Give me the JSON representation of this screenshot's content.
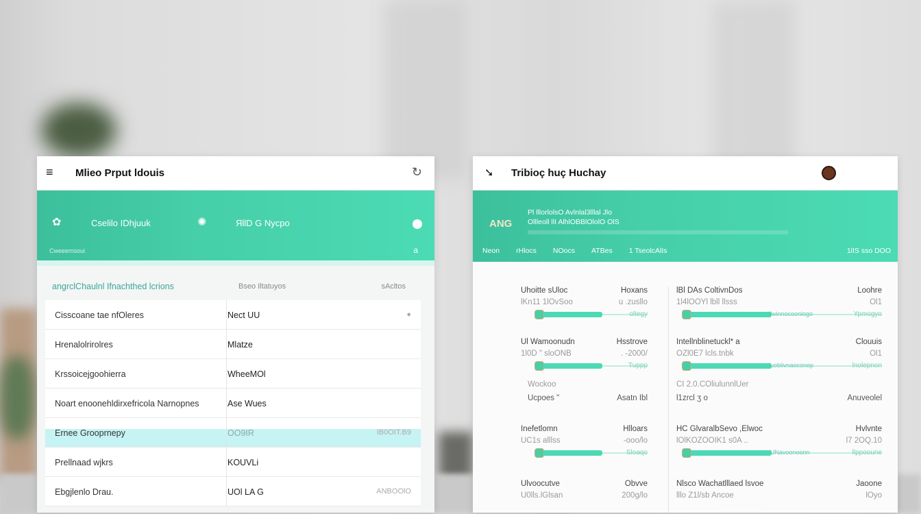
{
  "left_panel": {
    "title": "Mlieo Prput ldouis",
    "band": {
      "item1": "Cselilo IDhjuuk",
      "item2": "ЯllD G Nycpo",
      "sub": "Cweeemsoui",
      "sub_right": "a"
    },
    "section": {
      "heading": "angrclChaulnl Ifnachthed lcrions",
      "middle": "Bseo Iltatuyos",
      "right": "sAcltos"
    },
    "rows": [
      {
        "c1": "Cisscoane tae nfOleres",
        "c2": "Nect UU",
        "c3": "●"
      },
      {
        "c1": "Hrenalolrirolres",
        "c2": "Mlatze",
        "c3": ""
      },
      {
        "c1": "Krssoicejgoohierra",
        "c2": "WheeMOl",
        "c3": ""
      },
      {
        "c1": "Noart enoonehldirxefricola Narnopnes",
        "c2": "Ase Wues",
        "c3": ""
      },
      {
        "c1": "Ernee Grooprnepy",
        "c2": "OO9IR",
        "c3": "IB0OIT.B9"
      },
      {
        "c1": "Prellnaad wjkrs",
        "c2": "KOUVLi",
        "c3": ""
      },
      {
        "c1": "Ebgjlenlo Drau.",
        "c2": "UOl LA G",
        "c3": "ANBOOlO"
      }
    ],
    "highlight_row": 4
  },
  "right_panel": {
    "title": "Tribioç huç Huchay",
    "band": {
      "line1": "Pl lllorlolsO  Avlnlal3lllal Jlo",
      "line2": "Ollleoll llI    AlhlOBBlOlolO OlS",
      "logo": "ANG",
      "nav": [
        "Neon",
        "rHlocs",
        "NOocs",
        "ATBes",
        "1 TseolcAlIs"
      ],
      "nav_right": "1lIS sso DOO"
    },
    "left_blocks": [
      {
        "label": "Uhoitte sUloc",
        "value": "Hoxans",
        "sub": "lKn11 1lOvSoo",
        "sub_value": "u .zusllo",
        "bar_label": "oltegy",
        "progress": 0.6
      },
      {
        "label": "Ul Wamoonudn",
        "value": "Hsstrove",
        "sub": "1l0D \" sloONB",
        "sub_value": ". -2000/",
        "bar_label": "Tuppp",
        "progress": 0.6,
        "extra1": "Wockoo",
        "extra2": "Ucpoes \"",
        "extra2_value": "Asatn Ibl"
      },
      {
        "label": "Inefetlomn",
        "value": "Hlloars",
        "sub": "UC1s  alllss",
        "sub_value": "-ooo/lo",
        "bar_label": "Sloaqo",
        "progress": 0.6
      },
      {
        "label": "Ulvoocutve",
        "value": "Obvve",
        "sub": "U0lls.lGlsan",
        "sub_value": "200g/lo"
      }
    ],
    "right_blocks": [
      {
        "label": "lBl DAs ColtivnDos",
        "value": "Loohre",
        "sub": "1l4lOOYl  lbll   llsss",
        "sub_value": "Ol1",
        "bar_text": "llwinnocoonlogo",
        "bar_label": "Ypmogyo",
        "progress": 0.45
      },
      {
        "label": "Intellnblinetuckl* a",
        "value": "Clouuis",
        "sub": "OZl0E7  lcls.tnbk",
        "sub_value": "Ol1",
        "bar_text": "luoblivnaoconop",
        "bar_label": "lnolepnon",
        "progress": 0.45,
        "extra1": "CI 2.0.COliulunnlUer",
        "extra2": "l1zrcl ʒ o",
        "extra2_value": "Anuveolel"
      },
      {
        "label": "HC GlvaralbSevo ,Elwoc",
        "value": "Hvlvnte",
        "sub": "lOlKOZOOIK1  s0A  ..",
        "sub_value": "l7 2OQ.10",
        "bar_text": "lUNavoonoonn",
        "bar_label": "llppooune",
        "progress": 0.45
      },
      {
        "label": "Nlsco Wachatlllaed lsvoe",
        "value": "Jaoone",
        "sub": "lllo Z1l/sb Ancoe",
        "sub_value": "lOyo"
      }
    ]
  },
  "colors": {
    "accent": "#46cfa8",
    "highlight": "#c6f3f3"
  }
}
